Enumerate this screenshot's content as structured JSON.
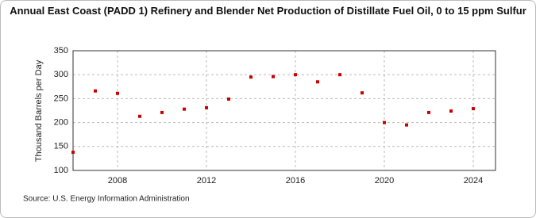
{
  "chart_data": {
    "type": "scatter",
    "title": "Annual East Coast (PADD 1) Refinery and Blender Net Production of Distillate Fuel Oil, 0 to 15 ppm Sulfur",
    "y_label": "Thousand Barrels per Day",
    "source": "Source: U.S. Energy Information Administration",
    "x": [
      2006,
      2007,
      2008,
      2009,
      2010,
      2011,
      2012,
      2013,
      2014,
      2015,
      2016,
      2017,
      2018,
      2019,
      2020,
      2021,
      2022,
      2023,
      2024
    ],
    "values": [
      138,
      266,
      261,
      213,
      221,
      228,
      231,
      249,
      295,
      296,
      300,
      285,
      300,
      262,
      200,
      195,
      221,
      224,
      229
    ],
    "color": "#cc0000",
    "xlim": [
      2006,
      2025
    ],
    "xticks": [
      2008,
      2012,
      2016,
      2020,
      2024
    ],
    "ylim": [
      100,
      350
    ],
    "yticks": [
      100,
      150,
      200,
      250,
      300,
      350
    ],
    "grid": true
  }
}
